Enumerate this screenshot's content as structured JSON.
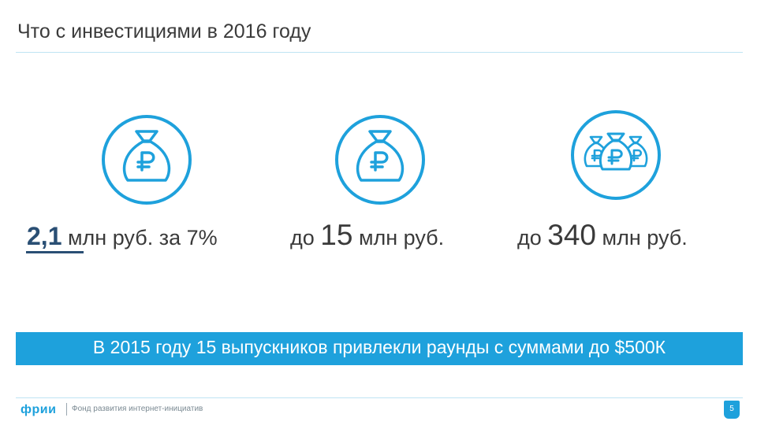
{
  "slide": {
    "title": "Что с инвестициями в 2016 году",
    "page_number": "5"
  },
  "items": [
    {
      "amount": "2,1",
      "text": " млн руб. за 7%",
      "icon": "money-bag-icon"
    },
    {
      "prefix": "до ",
      "amount": "15",
      "text": " млн руб.",
      "icon": "money-bag-icon"
    },
    {
      "prefix": "до ",
      "amount": "340",
      "text": " млн руб.",
      "icon": "money-bags-icon"
    }
  ],
  "banner": {
    "text": "В 2015 году 15 выпускников привлекли раунды с суммами до $500К"
  },
  "footer": {
    "logo": "фрии",
    "tagline": "Фонд развития интернет-инициатив"
  },
  "colors": {
    "accent": "#1ea1dc",
    "text": "#3a3a3a",
    "highlight": "#2a4f74"
  }
}
